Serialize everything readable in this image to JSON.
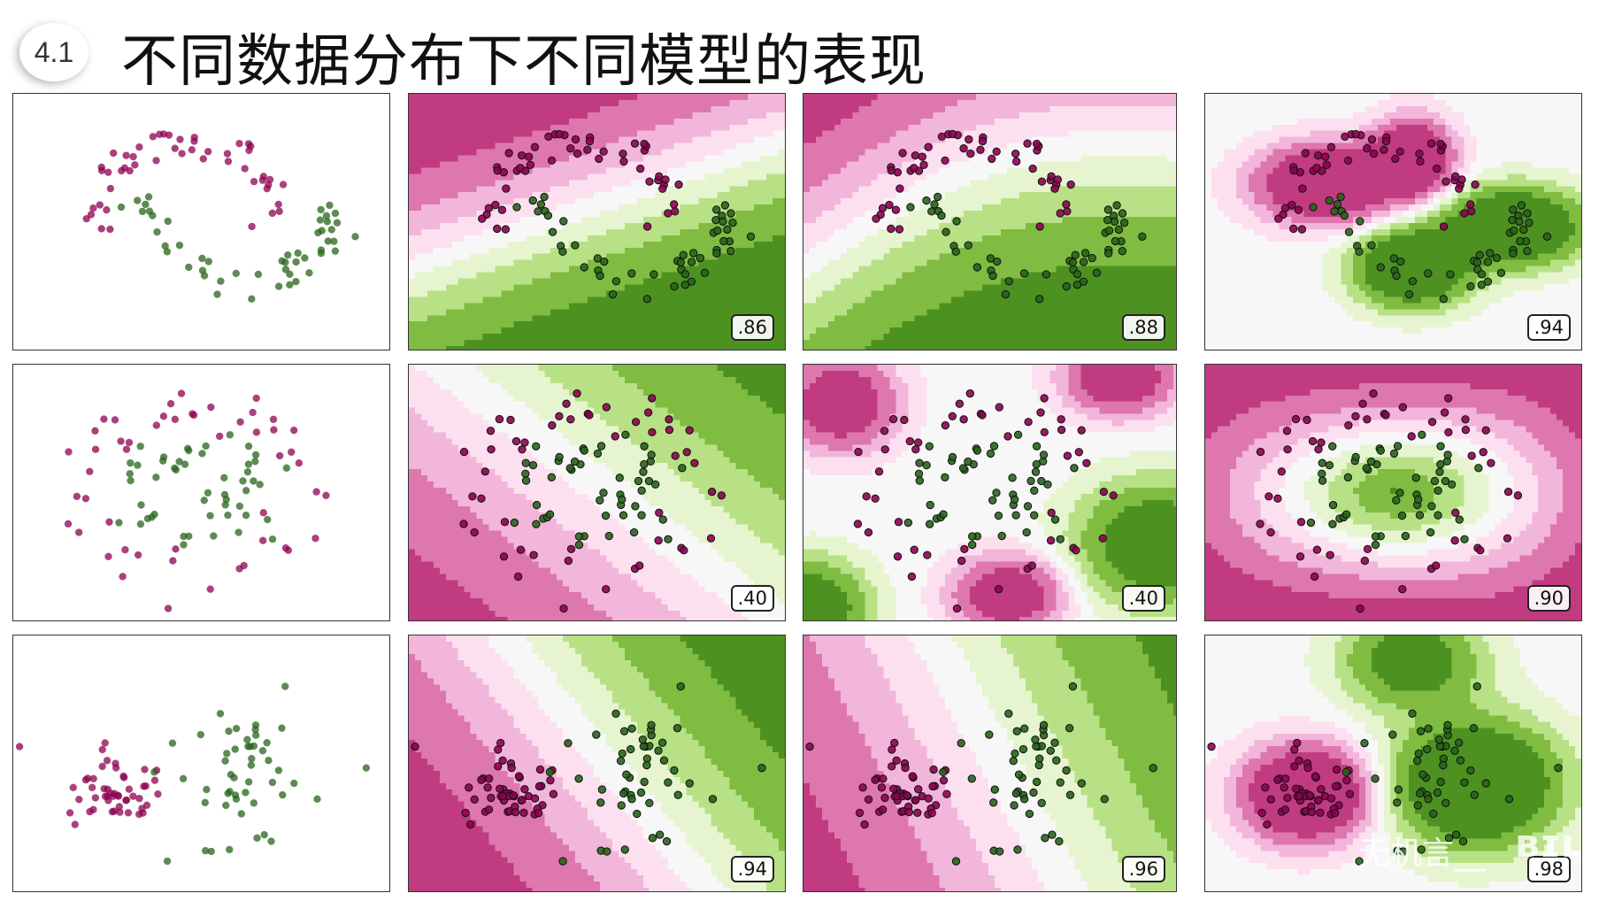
{
  "header": {
    "section_number": "4.1",
    "title": "不同数据分布下不同模型的表现"
  },
  "colors": {
    "pink_dark": "#c13b80",
    "pink_mid": "#de77ae",
    "pink_light": "#f1b6da",
    "pink_pale": "#fde0ef",
    "neutral": "#f7f7f7",
    "green_pale": "#e6f5d0",
    "green_light": "#b8e186",
    "green_mid": "#7fbc41",
    "green_dark": "#4d9221",
    "point_pink": "#8e0152",
    "point_green": "#276419"
  },
  "rows": [
    {
      "dataset": "moons",
      "panels": [
        {
          "kind": "input_data",
          "score": ""
        },
        {
          "kind": "decision_surface",
          "score": ".86"
        },
        {
          "kind": "decision_surface",
          "score": ".88"
        },
        {
          "kind": "decision_surface",
          "score": ".94"
        }
      ]
    },
    {
      "dataset": "circles",
      "panels": [
        {
          "kind": "input_data",
          "score": ""
        },
        {
          "kind": "decision_surface",
          "score": ".40"
        },
        {
          "kind": "decision_surface",
          "score": ".40"
        },
        {
          "kind": "decision_surface",
          "score": ".90"
        }
      ]
    },
    {
      "dataset": "linearly_separable",
      "panels": [
        {
          "kind": "input_data",
          "score": ""
        },
        {
          "kind": "decision_surface",
          "score": ".94"
        },
        {
          "kind": "decision_surface",
          "score": ".96"
        },
        {
          "kind": "decision_surface",
          "score": ".98"
        }
      ]
    }
  ],
  "watermark": {
    "text": "无机言__",
    "logo": "bilibili"
  }
}
